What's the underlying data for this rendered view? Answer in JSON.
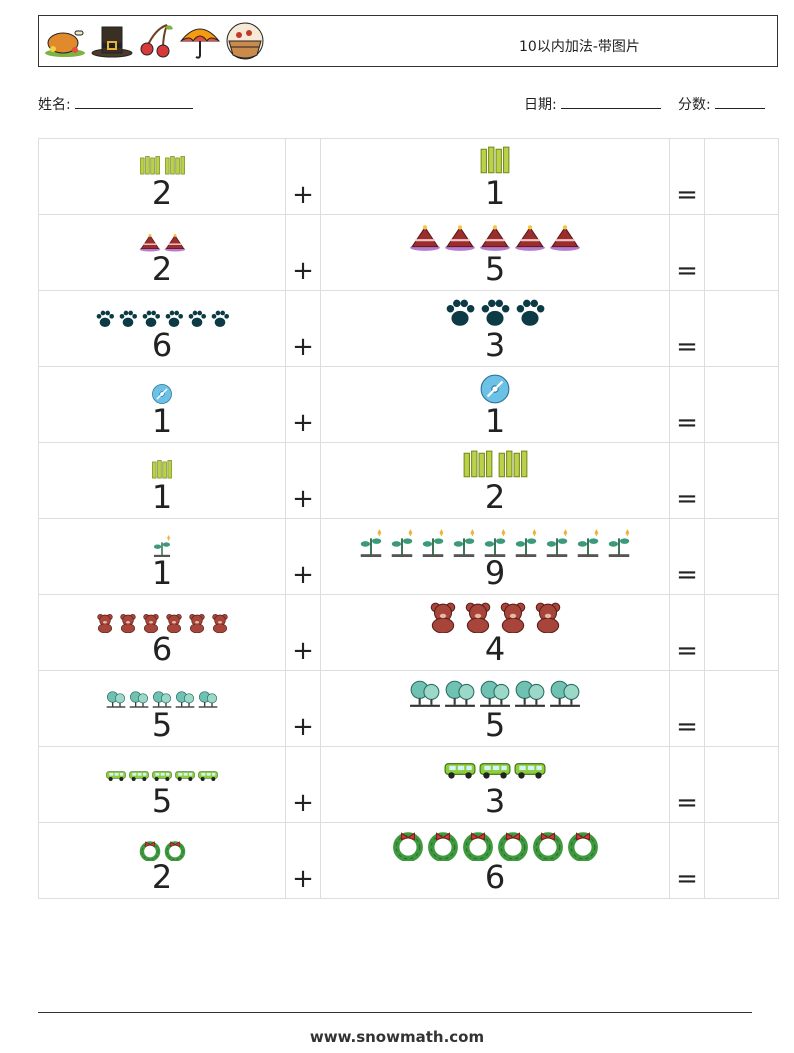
{
  "header": {
    "title": "10以内加法-带图片",
    "icons": [
      "turkey-icon",
      "pilgrim-hat-icon",
      "cherries-icon",
      "umbrella-icon",
      "pie-basket-icon"
    ]
  },
  "info": {
    "name_label": "姓名:",
    "date_label": "日期:",
    "score_label": "分数:"
  },
  "operators": {
    "plus": "+",
    "equals": "="
  },
  "rows": [
    {
      "a": "2",
      "b": "1",
      "icon": "bamboo-fence-icon",
      "color": "#b9d24a"
    },
    {
      "a": "2",
      "b": "5",
      "icon": "cake-icon",
      "color": "#9b2d2d"
    },
    {
      "a": "6",
      "b": "3",
      "icon": "paw-print-icon",
      "color": "#0c3b45"
    },
    {
      "a": "1",
      "b": "1",
      "icon": "cd-disc-icon",
      "color": "#6cc2e6"
    },
    {
      "a": "1",
      "b": "2",
      "icon": "bamboo-fence-icon",
      "color": "#b9d24a"
    },
    {
      "a": "1",
      "b": "9",
      "icon": "plant-sprout-icon",
      "color": "#3a9a7a"
    },
    {
      "a": "6",
      "b": "4",
      "icon": "teddy-bear-icon",
      "color": "#a8453a"
    },
    {
      "a": "5",
      "b": "5",
      "icon": "trees-icon",
      "color": "#6fc1b2"
    },
    {
      "a": "5",
      "b": "3",
      "icon": "limousine-icon",
      "color": "#8bcf3a"
    },
    {
      "a": "2",
      "b": "6",
      "icon": "wreath-icon",
      "color": "#3f9a3f"
    }
  ],
  "footer": {
    "website": "www.snowmath.com"
  }
}
